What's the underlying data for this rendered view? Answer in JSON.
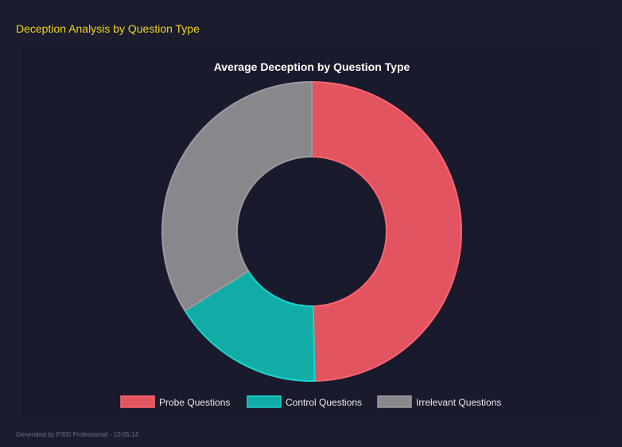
{
  "header": {
    "title": "Deception Analysis by Question Type"
  },
  "footer": {
    "text": "Generated by P300 Professional - 10:05:14"
  },
  "chart_data": {
    "type": "pie",
    "variant": "doughnut",
    "title": "Average Deception by Question Type",
    "categories": [
      "Probe Questions",
      "Control Questions",
      "Irrelevant Questions"
    ],
    "values": [
      49.7,
      16.4,
      33.9
    ],
    "colors": [
      "#e2545f",
      "#12aca6",
      "#88888c"
    ],
    "border_colors": [
      "#ff6570",
      "#19d6cc",
      "#9a9aa0"
    ],
    "legend": {
      "position": "bottom"
    }
  }
}
